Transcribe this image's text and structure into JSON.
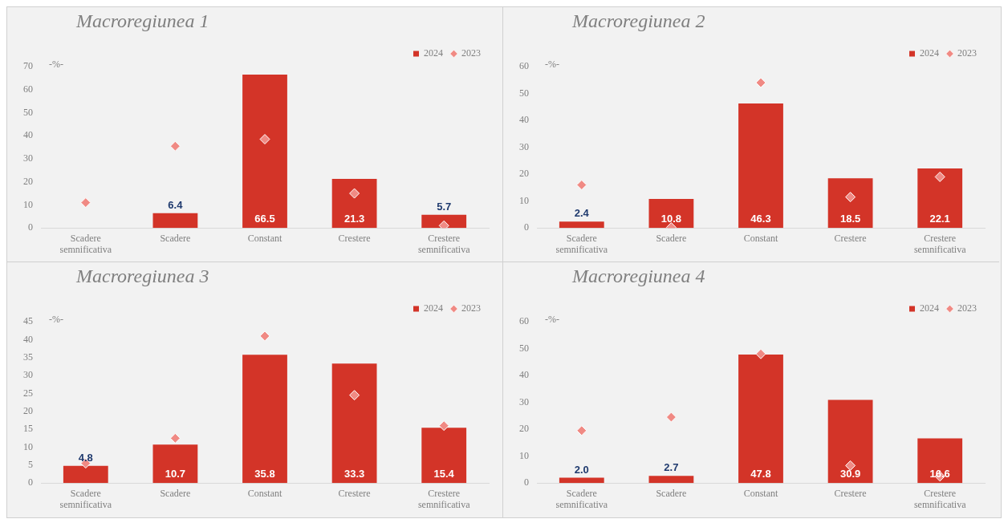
{
  "chart_data": [
    {
      "type": "bar",
      "title": "Macroregiunea 1",
      "ylabel": "-%-",
      "categories": [
        "Scadere\nsemnificativa",
        "Scadere",
        "Constant",
        "Crestere",
        "Crestere\nsemnificativa"
      ],
      "ylim": [
        0,
        70
      ],
      "yticks": [
        0,
        10,
        20,
        30,
        40,
        50,
        60,
        70
      ],
      "grid": false,
      "legend": "top right",
      "series": [
        {
          "name": "2024",
          "color": "#d33428",
          "values": [
            null,
            6.4,
            66.5,
            21.3,
            5.7
          ],
          "value_labels": [
            null,
            "6.4",
            "66.5",
            "21.3",
            "5.7"
          ]
        },
        {
          "name": "2023",
          "type": "scatter",
          "marker": "diamond",
          "color": "#f08a84",
          "values": [
            11,
            35.5,
            38.5,
            15,
            1
          ]
        }
      ]
    },
    {
      "type": "bar",
      "title": "Macroregiunea 2",
      "ylabel": "-%-",
      "categories": [
        "Scadere\nsemnificativa",
        "Scadere",
        "Constant",
        "Crestere",
        "Crestere\nsemnificativa"
      ],
      "ylim": [
        0,
        60
      ],
      "yticks": [
        0,
        10,
        20,
        30,
        40,
        50,
        60
      ],
      "grid": false,
      "legend": "top right",
      "series": [
        {
          "name": "2024",
          "color": "#d33428",
          "values": [
            2.4,
            10.8,
            46.3,
            18.5,
            22.1
          ],
          "value_labels": [
            "2.4",
            "10.8",
            "46.3",
            "18.5",
            "22.1"
          ]
        },
        {
          "name": "2023",
          "type": "scatter",
          "marker": "diamond",
          "color": "#f08a84",
          "values": [
            16,
            0.2,
            54,
            11.5,
            19
          ]
        }
      ]
    },
    {
      "type": "bar",
      "title": "Macroregiunea 3",
      "ylabel": "-%-",
      "categories": [
        "Scadere\nsemnificativa",
        "Scadere",
        "Constant",
        "Crestere",
        "Crestere\nsemnificativa"
      ],
      "ylim": [
        0,
        45
      ],
      "yticks": [
        0,
        5,
        10,
        15,
        20,
        25,
        30,
        35,
        40,
        45
      ],
      "grid": false,
      "legend": "top right",
      "series": [
        {
          "name": "2024",
          "color": "#d33428",
          "values": [
            4.8,
            10.7,
            35.8,
            33.3,
            15.4
          ],
          "value_labels": [
            "4.8",
            "10.7",
            "35.8",
            "33.3",
            "15.4"
          ]
        },
        {
          "name": "2023",
          "type": "scatter",
          "marker": "diamond",
          "color": "#f08a84",
          "values": [
            5.5,
            12.5,
            41,
            24.5,
            16
          ]
        }
      ]
    },
    {
      "type": "bar",
      "title": "Macroregiunea 4",
      "ylabel": "-%-",
      "categories": [
        "Scadere\nsemnificativa",
        "Scadere",
        "Constant",
        "Crestere",
        "Crestere\nsemnificativa"
      ],
      "ylim": [
        0,
        60
      ],
      "yticks": [
        0,
        10,
        20,
        30,
        40,
        50,
        60
      ],
      "grid": false,
      "legend": "top right",
      "series": [
        {
          "name": "2024",
          "color": "#d33428",
          "values": [
            2.0,
            2.7,
            47.8,
            30.9,
            16.6
          ],
          "value_labels": [
            "2.0",
            "2.7",
            "47.8",
            "30.9",
            "16.6"
          ]
        },
        {
          "name": "2023",
          "type": "scatter",
          "marker": "diamond",
          "color": "#f08a84",
          "values": [
            19.5,
            24.5,
            48,
            6.5,
            2.5
          ]
        }
      ]
    }
  ]
}
